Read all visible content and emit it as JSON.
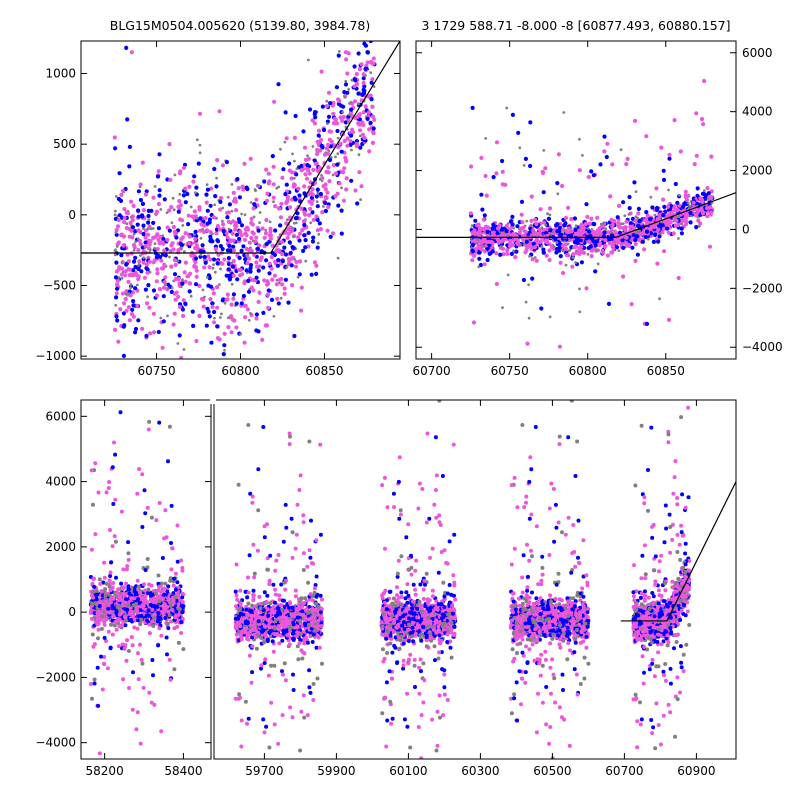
{
  "figure": {
    "left_title": "BLG15M0504.005620 (5139.80, 3984.78)",
    "right_title": "3 1729 588.71 -8.000 -8 [60877.493, 60880.157]"
  },
  "colors": {
    "gray": "#808080",
    "blue": "#0000ff",
    "magenta": "#ee55dd",
    "model": "#000000"
  },
  "chart_data": [
    {
      "name": "zoom-left",
      "type": "scatter",
      "title": "BLG15M0504.005620 (5139.80, 3984.78)",
      "xlim": [
        60705,
        60895
      ],
      "ylim": [
        -1020,
        1230
      ],
      "xticks": [
        60750,
        60800,
        60850
      ],
      "yticks": [
        -1000,
        -500,
        0,
        500,
        1000
      ],
      "data_x_range": [
        60725,
        60880
      ],
      "series": [
        {
          "name": "gray",
          "color": "#808080"
        },
        {
          "name": "blue",
          "color": "#0000ff"
        },
        {
          "name": "magenta",
          "color": "#ee55dd"
        }
      ],
      "model": {
        "x": [
          60705,
          60818,
          60895
        ],
        "y": [
          -270,
          -270,
          1230
        ]
      }
    },
    {
      "name": "zoom-right",
      "type": "scatter",
      "title": "3 1729 588.71 -8.000 -8 [60877.493, 60880.157]",
      "xlim": [
        60690,
        60895
      ],
      "ylim": [
        -4400,
        6400
      ],
      "xticks": [
        60700,
        60750,
        60800,
        60850
      ],
      "yticks": [
        -4000,
        -2000,
        0,
        2000,
        4000,
        6000
      ],
      "yaxis_side": "right",
      "data_x_range": [
        60725,
        60880
      ],
      "series": [
        {
          "name": "gray",
          "color": "#808080"
        },
        {
          "name": "blue",
          "color": "#0000ff"
        },
        {
          "name": "magenta",
          "color": "#ee55dd"
        }
      ],
      "model": {
        "x": [
          60690,
          60818,
          60895
        ],
        "y": [
          -270,
          -270,
          1250
        ]
      }
    },
    {
      "name": "full-lightcurve",
      "type": "scatter",
      "title": "",
      "ylim": [
        -4500,
        6500
      ],
      "yticks": [
        -4000,
        -2000,
        0,
        2000,
        4000,
        6000
      ],
      "segments": [
        {
          "xlim": [
            58140,
            58470
          ],
          "xticks": [
            58200,
            58400
          ],
          "seasons": [
            [
              58165,
              58400
            ]
          ]
        },
        {
          "xlim": [
            59560,
            61010
          ],
          "xticks": [
            59700,
            59900,
            60100,
            60300,
            60500,
            60700,
            60900
          ],
          "seasons": [
            [
              59620,
              59860
            ],
            [
              60025,
              60230
            ],
            [
              60385,
              60600
            ],
            [
              60725,
              60880
            ]
          ]
        }
      ],
      "series": [
        {
          "name": "gray",
          "color": "#808080"
        },
        {
          "name": "blue",
          "color": "#0000ff"
        },
        {
          "name": "magenta",
          "color": "#ee55dd"
        }
      ],
      "model": {
        "x": [
          60690,
          60818,
          61010
        ],
        "y": [
          -270,
          -270,
          4000
        ]
      }
    }
  ]
}
